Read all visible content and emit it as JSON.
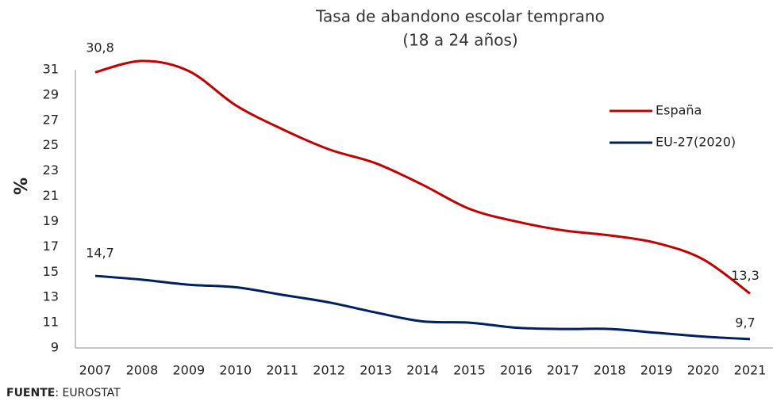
{
  "chart_data": {
    "type": "line",
    "title": "Tasa de abandono escolar temprano",
    "subtitle": "(18 a 24 años)",
    "y_label": "%",
    "categories": [
      "2007",
      "2008",
      "2009",
      "2010",
      "2011",
      "2012",
      "2013",
      "2014",
      "2015",
      "2016",
      "2017",
      "2018",
      "2019",
      "2020",
      "2021"
    ],
    "series": [
      {
        "name": "España",
        "color": "#c00000",
        "values": [
          30.8,
          31.7,
          30.9,
          28.2,
          26.3,
          24.7,
          23.6,
          21.9,
          20.0,
          19.0,
          18.3,
          17.9,
          17.3,
          16.0,
          13.3
        ],
        "value_labels": [
          "30,8",
          null,
          null,
          null,
          null,
          null,
          null,
          null,
          null,
          null,
          null,
          null,
          null,
          null,
          "13,3"
        ]
      },
      {
        "name": "EU-27(2020)",
        "color": "#002060",
        "values": [
          14.7,
          14.4,
          14.0,
          13.8,
          13.2,
          12.6,
          11.8,
          11.1,
          11.0,
          10.6,
          10.5,
          10.5,
          10.2,
          9.9,
          9.7
        ],
        "value_labels": [
          "14,7",
          null,
          null,
          null,
          null,
          null,
          null,
          null,
          null,
          null,
          null,
          null,
          null,
          null,
          "9,7"
        ]
      }
    ],
    "ylim": [
      9,
      31
    ],
    "yticks": [
      9,
      11,
      13,
      15,
      17,
      19,
      21,
      23,
      25,
      27,
      29,
      31
    ],
    "grid": false,
    "legend": "upper right",
    "source_label": "FUENTE",
    "source": ": EUROSTAT"
  }
}
